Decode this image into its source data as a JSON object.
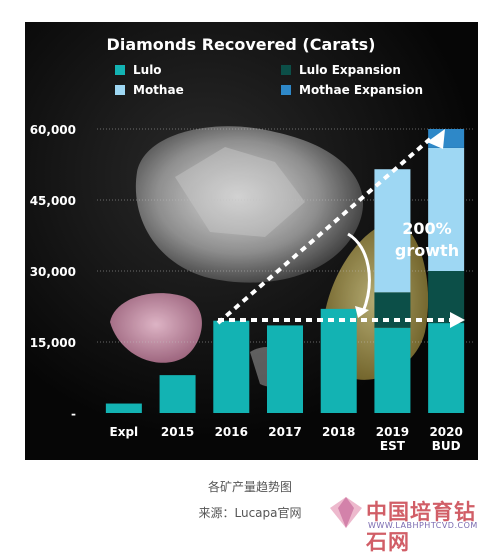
{
  "chart_data": {
    "type": "bar",
    "title": "Diamonds Recovered (Carats)",
    "categories": [
      "Expl",
      "2015",
      "2016",
      "2017",
      "2018",
      "2019\nEST",
      "2020\nBUD"
    ],
    "series": [
      {
        "name": "Lulo",
        "color": "#13b3b3",
        "values": [
          2000,
          8000,
          19500,
          18500,
          22000,
          18000,
          19000
        ]
      },
      {
        "name": "Lulo Expansion",
        "color": "#0c4f48",
        "values": [
          0,
          0,
          0,
          0,
          0,
          7500,
          11000
        ]
      },
      {
        "name": "Mothae",
        "color": "#9ed7f3",
        "values": [
          0,
          0,
          0,
          0,
          0,
          26000,
          26000
        ]
      },
      {
        "name": "Mothae Expansion",
        "color": "#2e88c8",
        "values": [
          0,
          0,
          0,
          0,
          0,
          0,
          4000
        ]
      }
    ],
    "y_ticks": [
      "60,000",
      "45,000",
      "30,000",
      "15,000",
      "-"
    ],
    "y_tick_values": [
      60000,
      45000,
      30000,
      15000,
      0
    ],
    "ylim": [
      0,
      62000
    ],
    "stacked": true,
    "annotation": "200% growth",
    "legend_position": "top"
  },
  "captions": {
    "line1": "各矿产量趋势图",
    "line2": "来源：Lucapa官网"
  },
  "watermark": {
    "text": "中国培育钻石网",
    "url": "WWW.LABHPHTCVD.COM"
  }
}
